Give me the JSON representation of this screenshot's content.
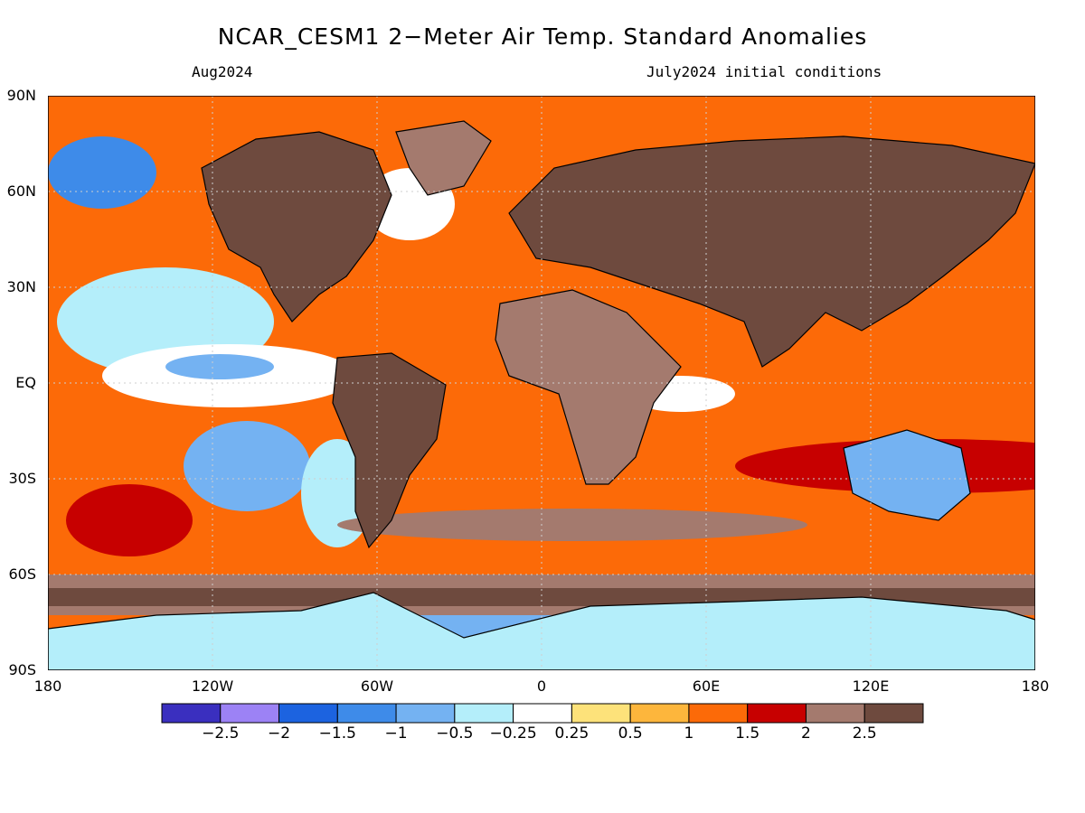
{
  "title": "NCAR_CESM1 2−Meter Air Temp. Standard Anomalies",
  "valid_month": "Aug2024",
  "initial_conditions": "July2024 initial conditions",
  "lat_labels": [
    {
      "lat": 90,
      "text": "90N"
    },
    {
      "lat": 60,
      "text": "60N"
    },
    {
      "lat": 30,
      "text": "30N"
    },
    {
      "lat": 0,
      "text": "EQ"
    },
    {
      "lat": -30,
      "text": "30S"
    },
    {
      "lat": -60,
      "text": "60S"
    },
    {
      "lat": -90,
      "text": "90S"
    }
  ],
  "lon_labels": [
    {
      "lon": -180,
      "text": "180"
    },
    {
      "lon": -120,
      "text": "120W"
    },
    {
      "lon": -60,
      "text": "60W"
    },
    {
      "lon": 0,
      "text": "0"
    },
    {
      "lon": 60,
      "text": "60E"
    },
    {
      "lon": 120,
      "text": "120E"
    },
    {
      "lon": 180,
      "text": "180"
    }
  ],
  "colorbar": {
    "colors": [
      "#3a2fbf",
      "#9c82f5",
      "#1c63e0",
      "#3e8be9",
      "#74b2f2",
      "#b4eefa",
      "#ffffff",
      "#fde27a",
      "#fdb63c",
      "#fc6a08",
      "#c70000",
      "#a47a6e",
      "#6e4a3e"
    ],
    "labels": [
      "−2.5",
      "−2",
      "−1.5",
      "−1",
      "−0.5",
      "−0.25",
      "0.25",
      "0.5",
      "1",
      "1.5",
      "2",
      "2.5"
    ]
  },
  "colors": {
    "land_anomaly_strong": "#6e4a3e",
    "land_anomaly": "#a47a6e",
    "ocean_warm": "#fc6a08",
    "coastline": "#000000",
    "grid": "#cfcfcf"
  }
}
